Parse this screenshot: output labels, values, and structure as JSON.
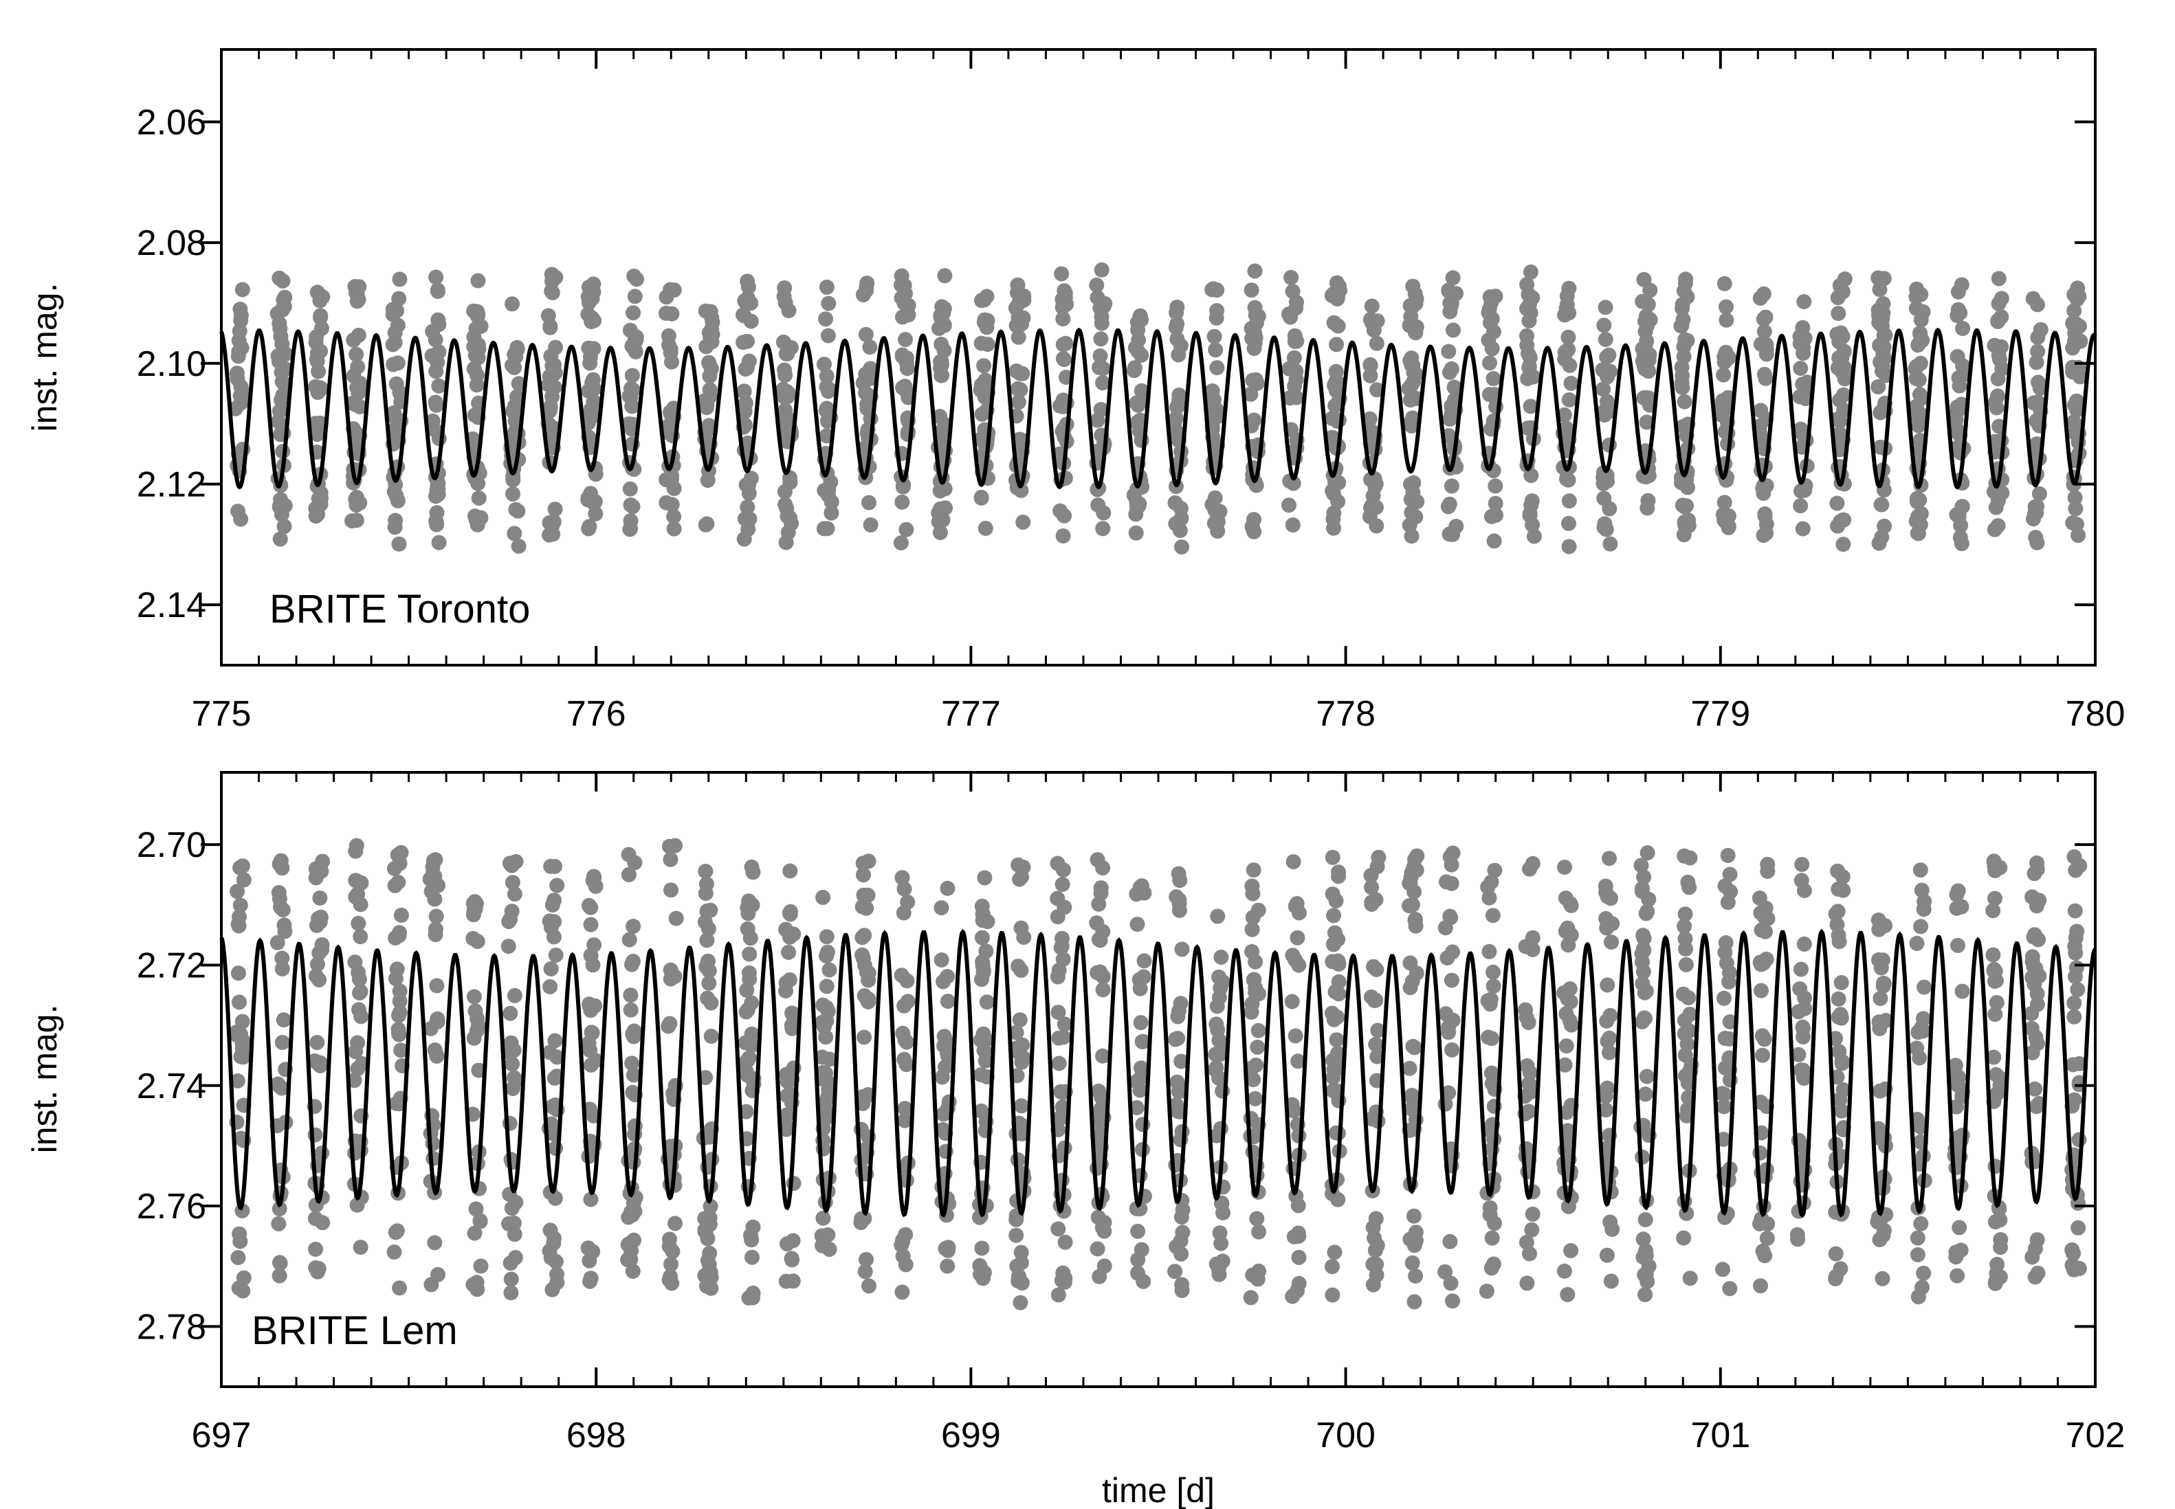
{
  "chart_data": [
    {
      "type": "scatter",
      "panel_label": "BRITE Toronto",
      "xlabel": "",
      "ylabel": "inst. mag.",
      "xlim": [
        775,
        780
      ],
      "ylim": [
        2.15,
        2.048
      ],
      "y_inverted": true,
      "x_ticks": [
        "775",
        "776",
        "777",
        "778",
        "779",
        "780"
      ],
      "y_ticks": [
        "2.06",
        "2.08",
        "2.10",
        "2.12",
        "2.14"
      ],
      "grid": false,
      "model": {
        "mean": 2.1075,
        "amp_base": 0.0115,
        "amp_mod": 0.0015,
        "cycles_per_day": 9.6,
        "phase": 0.2
      },
      "observation_spread": {
        "extra": 0.01
      },
      "points_color": "#858585",
      "model_color": "#000000"
    },
    {
      "type": "scatter",
      "panel_label": "BRITE Lem",
      "xlabel": "time [d]",
      "ylabel": "inst. mag.",
      "xlim": [
        697,
        702
      ],
      "ylim": [
        2.79,
        2.688
      ],
      "y_inverted": true,
      "x_ticks": [
        "697",
        "698",
        "699",
        "700",
        "701",
        "702"
      ],
      "y_ticks": [
        "2.70",
        "2.72",
        "2.74",
        "2.76",
        "2.78"
      ],
      "grid": false,
      "model": {
        "mean": 2.738,
        "amp_base": 0.0215,
        "amp_mod": 0.002,
        "cycles_per_day": 9.6,
        "phase": 0.05
      },
      "observation_spread": {
        "extra": 0.015
      },
      "points_color": "#858585",
      "model_color": "#000000"
    }
  ]
}
